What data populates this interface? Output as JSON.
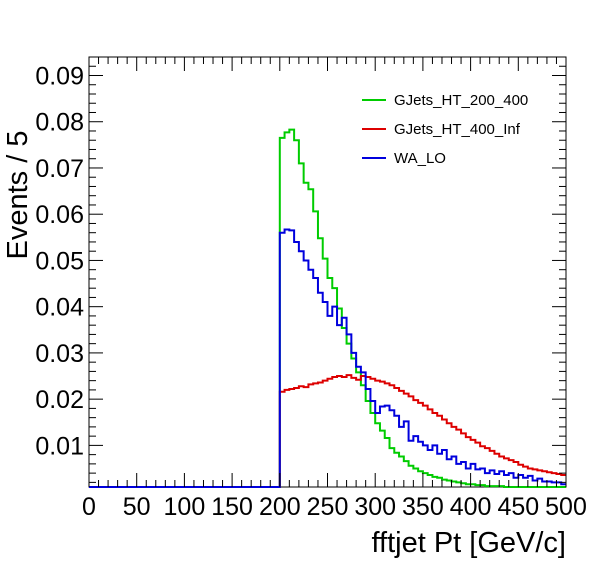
{
  "chart_data": {
    "type": "line",
    "title": "",
    "xlabel": "fftjet Pt [GeV/c]",
    "ylabel": "Events / 5",
    "xlim": [
      0,
      500
    ],
    "ylim": [
      0.001,
      0.094
    ],
    "bin_width": 5,
    "x_ticks": [
      0,
      50,
      100,
      150,
      200,
      250,
      300,
      350,
      400,
      450,
      500
    ],
    "x_tick_labels": [
      "0",
      "50",
      "100",
      "150",
      "200",
      "250",
      "300",
      "350",
      "400",
      "450",
      "500"
    ],
    "y_ticks": [
      0.01,
      0.02,
      0.03,
      0.04,
      0.05,
      0.06,
      0.07,
      0.08,
      0.09
    ],
    "y_tick_labels": [
      "0.01",
      "0.02",
      "0.03",
      "0.04",
      "0.05",
      "0.06",
      "0.07",
      "0.08",
      "0.09"
    ],
    "grid": false,
    "legend_position": "top-right",
    "series": [
      {
        "name": "GJets_HT_200_400",
        "color": "#00cc00",
        "start": 200,
        "values": [
          0.0765,
          0.0777,
          0.0783,
          0.076,
          0.071,
          0.0668,
          0.0654,
          0.0606,
          0.0548,
          0.0504,
          0.0462,
          0.044,
          0.0396,
          0.0354,
          0.032,
          0.0288,
          0.0258,
          0.023,
          0.0196,
          0.017,
          0.0148,
          0.0132,
          0.0116,
          0.0094,
          0.0084,
          0.0076,
          0.0066,
          0.0056,
          0.005,
          0.0044,
          0.004,
          0.0036,
          0.0032,
          0.003,
          0.0026,
          0.0024,
          0.0022,
          0.002,
          0.0018,
          0.0016,
          0.0016,
          0.0014,
          0.0014,
          0.0012,
          0.0012,
          0.0012,
          0.0012,
          0.001,
          0.001,
          0.001,
          0.001,
          0.001,
          0.001,
          0.001,
          0.001,
          0.001,
          0.001,
          0.001,
          0.001,
          0.001
        ]
      },
      {
        "name": "GJets_HT_400_Inf",
        "color": "#dd0000",
        "start": 200,
        "values": [
          0.0216,
          0.022,
          0.0222,
          0.0224,
          0.0228,
          0.0226,
          0.0232,
          0.0234,
          0.0236,
          0.024,
          0.0244,
          0.0248,
          0.025,
          0.0248,
          0.0252,
          0.0246,
          0.0242,
          0.025,
          0.0248,
          0.0244,
          0.024,
          0.0238,
          0.0234,
          0.023,
          0.0224,
          0.0218,
          0.0212,
          0.0206,
          0.0198,
          0.0192,
          0.0186,
          0.0178,
          0.017,
          0.0164,
          0.0156,
          0.0148,
          0.014,
          0.0134,
          0.0126,
          0.0118,
          0.0112,
          0.0106,
          0.0098,
          0.0094,
          0.0088,
          0.0082,
          0.0076,
          0.0072,
          0.0068,
          0.0064,
          0.0058,
          0.0054,
          0.005,
          0.0048,
          0.0046,
          0.0044,
          0.0042,
          0.004,
          0.0038,
          0.0036
        ]
      },
      {
        "name": "WA_LO",
        "color": "#0000dd",
        "start": 200,
        "values": [
          0.056,
          0.0567,
          0.0565,
          0.054,
          0.052,
          0.05,
          0.048,
          0.0462,
          0.043,
          0.041,
          0.038,
          0.04,
          0.036,
          0.0376,
          0.034,
          0.03,
          0.027,
          0.0258,
          0.0222,
          0.0196,
          0.017,
          0.0184,
          0.0186,
          0.0176,
          0.0164,
          0.014,
          0.0152,
          0.011,
          0.012,
          0.0108,
          0.01,
          0.009,
          0.01,
          0.0082,
          0.009,
          0.007,
          0.0076,
          0.006,
          0.0064,
          0.005,
          0.006,
          0.0048,
          0.005,
          0.004,
          0.0046,
          0.0038,
          0.0044,
          0.0036,
          0.004,
          0.003,
          0.0036,
          0.003,
          0.0034,
          0.0024,
          0.0028,
          0.0022,
          0.0022,
          0.002,
          0.002,
          0.0016
        ]
      }
    ],
    "baseline_value": 0.001
  }
}
